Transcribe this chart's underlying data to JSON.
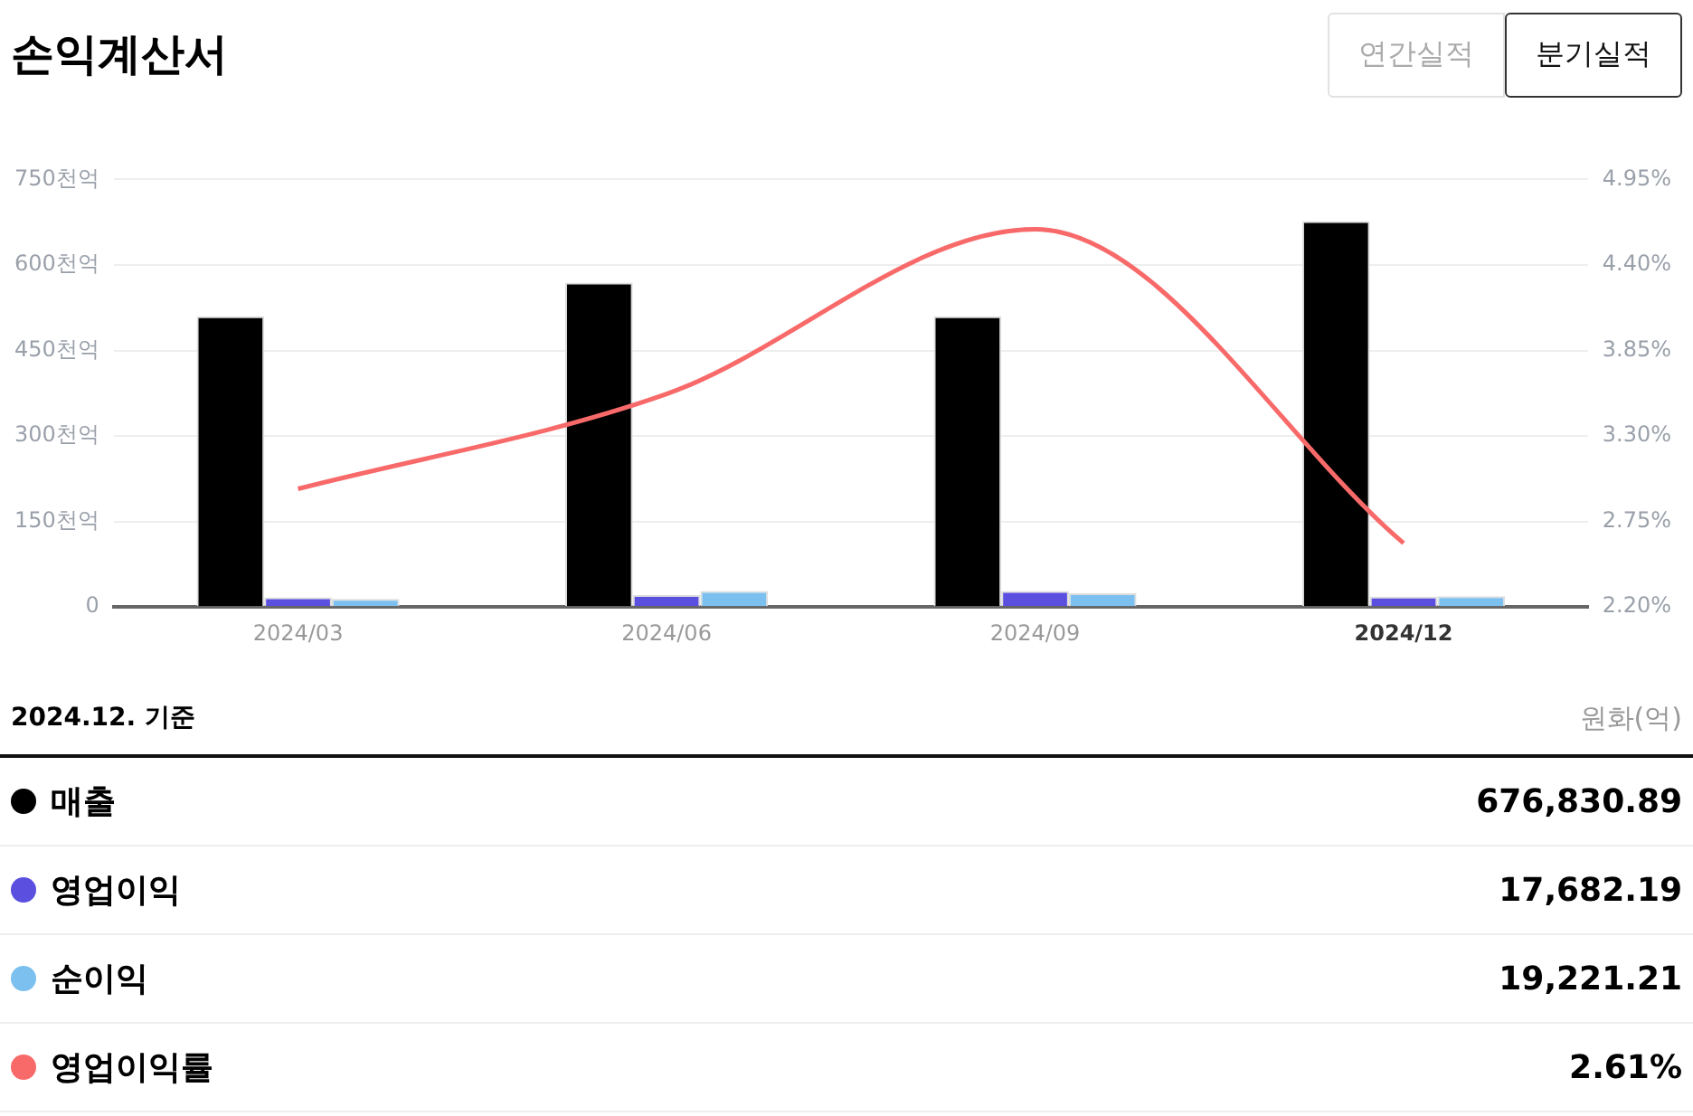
{
  "chart_data": {
    "type": "bar",
    "title": "손익계산서",
    "categories": [
      "2024/03",
      "2024/06",
      "2024/09",
      "2024/12"
    ],
    "series": [
      {
        "name": "매출",
        "color": "#000000",
        "values": [
          510,
          569,
          510,
          677
        ]
      },
      {
        "name": "영업이익",
        "color": "#5b4fe0",
        "values": [
          17,
          21,
          28,
          18
        ]
      },
      {
        "name": "순이익",
        "color": "#7cc0f0",
        "values": [
          14,
          28,
          24,
          19
        ]
      },
      {
        "name": "영업이익률",
        "type": "line",
        "axis": "y2",
        "color": "#f86a6a",
        "values": [
          2.96,
          3.57,
          4.63,
          2.61
        ]
      }
    ],
    "ylim": [
      0,
      750
    ],
    "yticks": [
      0,
      {
        "value": 150,
        "label": "150천억"
      },
      {
        "value": 300,
        "label": "300천억"
      },
      {
        "value": 450,
        "label": "450천억"
      },
      {
        "value": 600,
        "label": "600천억"
      },
      {
        "value": 750,
        "label": "750천억"
      }
    ],
    "y2lim": [
      2.2,
      4.95
    ],
    "y2ticks": [
      {
        "value": 2.2,
        "label": "2.20%"
      },
      {
        "value": 2.75,
        "label": "2.75%"
      },
      {
        "value": 3.3,
        "label": "3.30%"
      },
      {
        "value": 3.85,
        "label": "3.85%"
      },
      {
        "value": 4.4,
        "label": "4.40%"
      },
      {
        "value": 4.95,
        "label": "4.95%"
      }
    ],
    "grid": "y",
    "legend": "bottom",
    "marker": "none",
    "line_style": "solid",
    "annotations": [
      "연간실적",
      "분기실적",
      "2024.12. 기준",
      "원화(억)",
      "676,830.89",
      "17,682.19",
      "19,221.21",
      "2.61%"
    ]
  }
}
